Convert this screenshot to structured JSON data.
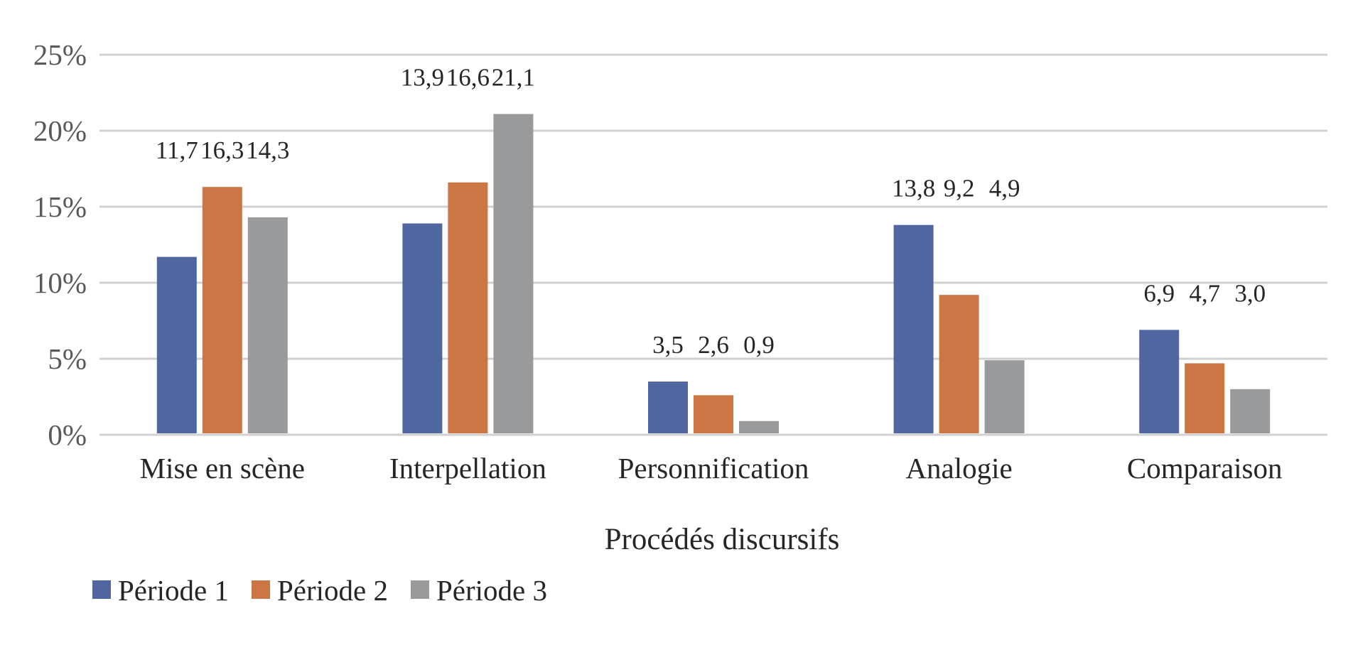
{
  "chart_data": {
    "type": "bar",
    "title": "",
    "xlabel": "Procédés discursifs",
    "ylabel": "",
    "categories": [
      "Mise en scène",
      "Interpellation",
      "Personnification",
      "Analogie",
      "Comparaison"
    ],
    "series": [
      {
        "name": "Période 1",
        "color": "#5066a0",
        "values": [
          11.7,
          13.9,
          3.5,
          13.8,
          6.9
        ],
        "labels": [
          "11,7",
          "13,9",
          "3,5",
          "13,8",
          "6,9"
        ]
      },
      {
        "name": "Période 2",
        "color": "#cc7643",
        "values": [
          16.3,
          16.6,
          2.6,
          9.2,
          4.7
        ],
        "labels": [
          "16,3",
          "16,6",
          "2,6",
          "9,2",
          "4,7"
        ]
      },
      {
        "name": "Période 3",
        "color": "#999a9b",
        "values": [
          14.3,
          21.1,
          0.9,
          4.9,
          3.0
        ],
        "labels": [
          "14,3",
          "21,1",
          "0,9",
          "4,9",
          "3,0"
        ]
      }
    ],
    "ylim": [
      0,
      25
    ],
    "yticks": [
      0,
      5,
      10,
      15,
      20,
      25
    ],
    "ytick_labels": [
      "0%",
      "5%",
      "10%",
      "15%",
      "20%",
      "25%"
    ],
    "grid": true,
    "legend": {
      "placement": "bottom-left",
      "entries": [
        "Période 1",
        "Période 2",
        "Période 3"
      ]
    }
  }
}
